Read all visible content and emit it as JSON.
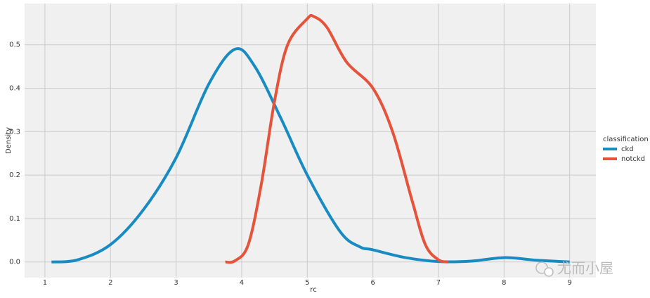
{
  "chart_data": {
    "type": "line",
    "xlabel": "rc",
    "ylabel": "Density",
    "xlim": [
      0.69,
      9.4
    ],
    "ylim": [
      -0.036,
      0.595
    ],
    "xticks": [
      1,
      2,
      3,
      4,
      5,
      6,
      7,
      8,
      9
    ],
    "yticks": [
      {
        "value": 0,
        "label": "0.0"
      },
      0.1,
      0.2,
      0.3,
      0.4,
      0.5
    ],
    "grid": true,
    "legend": {
      "title": "classification",
      "position": "right"
    },
    "series": [
      {
        "name": "ckd",
        "color": "#188bc2",
        "x": [
          1.1,
          1.5,
          2,
          2.5,
          3,
          3.5,
          3.9,
          4.2,
          4.6,
          5,
          5.5,
          5.8,
          6,
          6.5,
          7,
          7.5,
          8,
          8.5,
          9
        ],
        "values": [
          0,
          0.005,
          0.04,
          0.12,
          0.24,
          0.41,
          0.49,
          0.45,
          0.33,
          0.2,
          0.07,
          0.035,
          0.028,
          0.01,
          0.001,
          0.002,
          0.01,
          0.004,
          0
        ]
      },
      {
        "name": "notckd",
        "color": "#e5533a",
        "x": [
          3.75,
          3.9,
          4.1,
          4.3,
          4.5,
          4.7,
          5,
          5.1,
          5.3,
          5.6,
          6,
          6.3,
          6.6,
          6.8,
          7,
          7.15
        ],
        "values": [
          0,
          0.003,
          0.04,
          0.18,
          0.37,
          0.5,
          0.56,
          0.565,
          0.54,
          0.46,
          0.4,
          0.3,
          0.14,
          0.04,
          0.005,
          0
        ]
      }
    ],
    "watermark": "尤而小屋"
  }
}
